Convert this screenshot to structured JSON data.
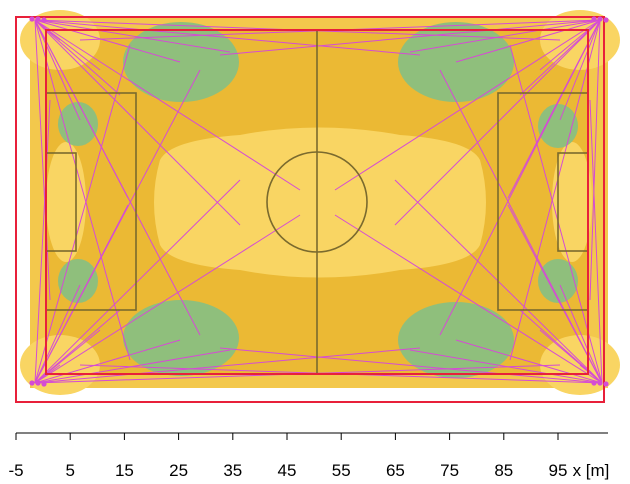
{
  "colors": {
    "background": "#ffffff",
    "isoline_high": "#f9d563",
    "isoline_mid": "#ebb934",
    "isoline_low_band": "#f3c84c",
    "isoline_low": "#8fbf7c",
    "field_lines": "#7a6a2e",
    "boundary": "#e8203a",
    "light_beams": "#d54cd4",
    "axis": "#000000"
  },
  "scale": {
    "ticks": [
      "-5",
      "5",
      "15",
      "25",
      "35",
      "45",
      "55",
      "65",
      "75",
      "85",
      "95"
    ],
    "unit_label": "x [m]"
  }
}
